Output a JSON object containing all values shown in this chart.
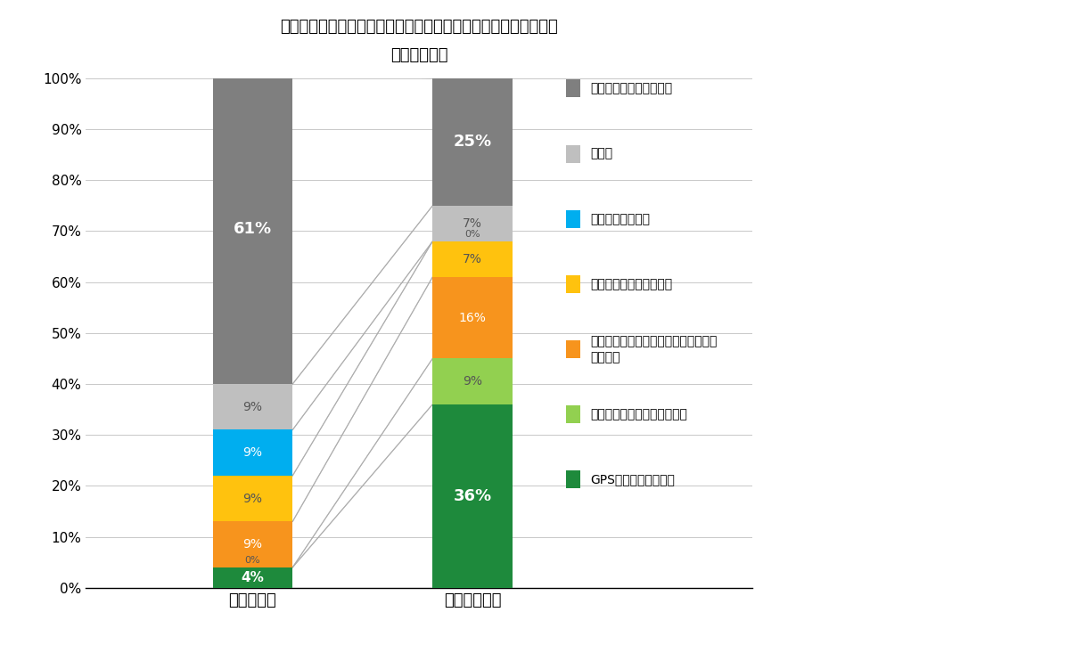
{
  "title_line1": "お子様の迷子を防ぐために、どのような対策を行っていますか。",
  "title_line2": "（複数回答）",
  "categories": [
    "年少～年長",
    "小学校低学年"
  ],
  "series": [
    {
      "label": "GPS等を持たせている",
      "color": "#1e8a3c",
      "values": [
        4,
        36
      ],
      "text_bold": true
    },
    {
      "label": "携帯電話やスマホを持たせる",
      "color": "#92d050",
      "values": [
        0,
        9
      ],
      "text_bold": false
    },
    {
      "label": "集合場所や助けを求める人等のルールを決める",
      "color": "#f7941d",
      "values": [
        9,
        16
      ],
      "text_bold": false
    },
    {
      "label": "目立つ色の服を着させる",
      "color": "#ffc20e",
      "values": [
        9,
        7
      ],
      "text_bold": false
    },
    {
      "label": "迷子札等を付ける",
      "color": "#00aeef",
      "values": [
        9,
        0
      ],
      "text_bold": false
    },
    {
      "label": "その他",
      "color": "#bfbfbf",
      "values": [
        9,
        7
      ],
      "text_bold": false
    },
    {
      "label": "特に対策は行っていない",
      "color": "#7f7f7f",
      "values": [
        61,
        25
      ],
      "text_bold": true
    }
  ],
  "ylim": [
    0,
    100
  ],
  "yticks": [
    0,
    10,
    20,
    30,
    40,
    50,
    60,
    70,
    80,
    90,
    100
  ],
  "background_color": "#ffffff",
  "text_color": "#000000",
  "grid_color": "#808080",
  "bar_width": 0.12,
  "x_positions": [
    0.25,
    0.58
  ],
  "legend_items": [
    {
      "label": "特に対策は行っていない",
      "color": "#7f7f7f"
    },
    {
      "label": "その他",
      "color": "#bfbfbf"
    },
    {
      "label": "迷子札等を付ける",
      "color": "#00aeef"
    },
    {
      "label": "目立つ色の服を着させる",
      "color": "#ffc20e"
    },
    {
      "label": "集合場所や助けを求める人等のルール\nを決める",
      "color": "#f7941d"
    },
    {
      "label": "携帯電話やスマホを持たせる",
      "color": "#92d050"
    },
    {
      "label": "GPS等を持たせている",
      "color": "#1e8a3c"
    }
  ]
}
